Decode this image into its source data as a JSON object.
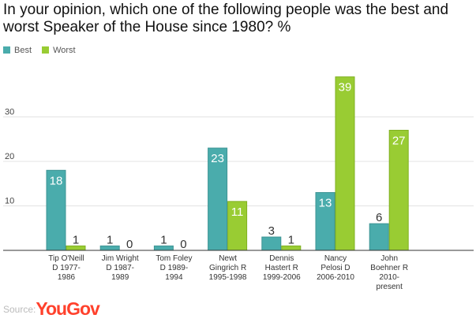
{
  "title": "In your opinion, which one of the following people was the best and worst Speaker of the House since 1980? %",
  "source": {
    "prefix": "Source:",
    "brand": "YouGov"
  },
  "colors": {
    "best": "#4aacac",
    "worst": "#99cc33",
    "best_border": "#3e9494",
    "worst_border": "#7fb020"
  },
  "chart_data": {
    "type": "bar",
    "categories": [
      [
        "Tip O'Neill",
        "D 1977-",
        "1986"
      ],
      [
        "Jim Wright",
        "D 1987-",
        "1989"
      ],
      [
        "Tom Foley",
        "D 1989-",
        "1994"
      ],
      [
        "Newt",
        "Gingrich R",
        "1995-1998"
      ],
      [
        "Dennis",
        "Hastert R",
        "1999-2006"
      ],
      [
        "Nancy",
        "Pelosi D",
        "2006-2010"
      ],
      [
        "John",
        "Boehner R",
        "2010-",
        "present"
      ]
    ],
    "series": [
      {
        "name": "Best",
        "values": [
          18,
          1,
          1,
          23,
          3,
          13,
          6
        ]
      },
      {
        "name": "Worst",
        "values": [
          1,
          0,
          0,
          11,
          1,
          39,
          27
        ]
      }
    ],
    "yticks": [
      10,
      20,
      30
    ],
    "ylim": [
      0,
      40
    ],
    "grid": true,
    "legend": "top-left"
  }
}
